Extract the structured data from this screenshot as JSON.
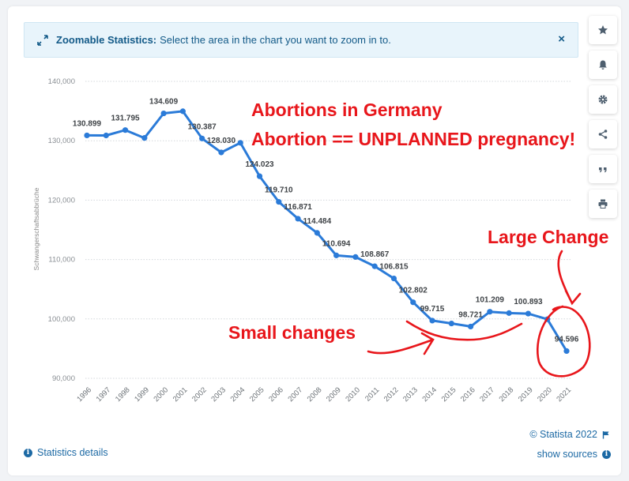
{
  "banner": {
    "title": "Zoomable Statistics:",
    "text": "Select the area in the chart you want to zoom in to.",
    "close": "×"
  },
  "toolbar": [
    "star-icon",
    "bell-icon",
    "gear-icon",
    "share-icon",
    "quote-icon",
    "print-icon"
  ],
  "chart_data": {
    "type": "line",
    "title": "",
    "xlabel": "",
    "ylabel": "Schwangerschaftsabbrüche",
    "ylim": [
      90000,
      140000
    ],
    "yticks": [
      "90,000",
      "100,000",
      "110,000",
      "120,000",
      "130,000",
      "140,000"
    ],
    "grid": "horizontal dotted",
    "line_color": "#2b7bd8",
    "x": [
      "1996",
      "1997",
      "1998",
      "1999",
      "2000",
      "2001",
      "2002",
      "2003",
      "2004",
      "2005",
      "2006",
      "2007",
      "2008",
      "2009",
      "2010",
      "2011",
      "2012",
      "2013",
      "2014",
      "2015",
      "2016",
      "2017",
      "2018",
      "2019",
      "2020",
      "2021"
    ],
    "values": [
      130899,
      130890,
      131795,
      130471,
      134609,
      134964,
      130387,
      128030,
      129650,
      124023,
      119710,
      116871,
      114484,
      110694,
      110431,
      108867,
      106815,
      102802,
      99715,
      99237,
      98721,
      101209,
      100986,
      100893,
      99948,
      94596
    ],
    "data_labels": [
      {
        "index": 0,
        "text": "130.899"
      },
      {
        "index": 2,
        "text": "131.795"
      },
      {
        "index": 4,
        "text": "134.609"
      },
      {
        "index": 6,
        "text": "130.387"
      },
      {
        "index": 7,
        "text": "128.030"
      },
      {
        "index": 9,
        "text": "124.023"
      },
      {
        "index": 10,
        "text": "119.710"
      },
      {
        "index": 11,
        "text": "116.871"
      },
      {
        "index": 12,
        "text": "114.484"
      },
      {
        "index": 13,
        "text": "110.694"
      },
      {
        "index": 15,
        "text": "108.867"
      },
      {
        "index": 16,
        "text": "106.815"
      },
      {
        "index": 17,
        "text": "102.802"
      },
      {
        "index": 18,
        "text": "99.715"
      },
      {
        "index": 20,
        "text": "98.721"
      },
      {
        "index": 21,
        "text": "101.209"
      },
      {
        "index": 23,
        "text": "100.893"
      },
      {
        "index": 25,
        "text": "94.596"
      }
    ]
  },
  "annotations": {
    "line1": "Abortions in Germany",
    "line2": "Abortion == UNPLANNED pregnancy!",
    "large": "Large Change",
    "small": "Small changes",
    "color": "#e8161b"
  },
  "footer": {
    "details": "Statistics details",
    "copyright": "© Statista 2022",
    "sources": "show sources"
  }
}
